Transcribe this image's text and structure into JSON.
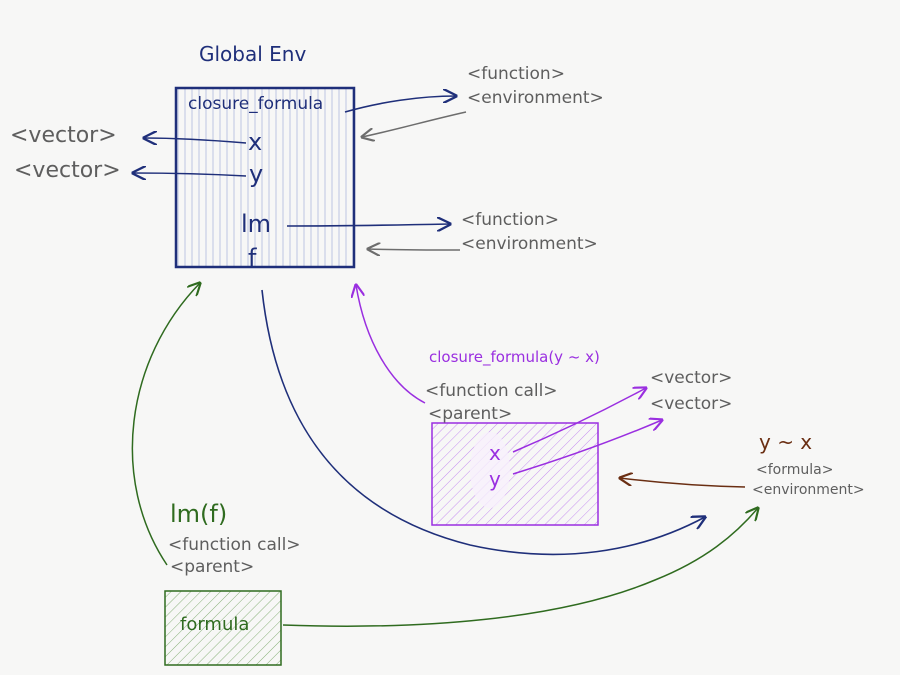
{
  "global_env": {
    "title": "Global Env",
    "vars": [
      "closure_formula",
      "x",
      "y",
      "lm",
      "f"
    ]
  },
  "global_targets": {
    "x_type": "<vector>",
    "y_type": "<vector>",
    "closure_function": "<function>",
    "closure_environment": "<environment>",
    "lm_function": "<function>",
    "lm_environment": "<environment>"
  },
  "closure_call": {
    "title": "closure_formula(y ~ x)",
    "function_call": "<function call>",
    "parent": "<parent>",
    "vars": [
      "x",
      "y"
    ],
    "x_type": "<vector>",
    "y_type": "<vector>"
  },
  "formula_obj": {
    "title": "y ~ x",
    "formula": "<formula>",
    "environment": "<environment>"
  },
  "lm_call": {
    "title": "lm(f)",
    "function_call": "<function call>",
    "parent": "<parent>",
    "var": "formula"
  },
  "colors": {
    "global": "#1f2f7a",
    "closure": "#9a2fe0",
    "lm": "#2f6b1f",
    "formula": "#6a2e12",
    "gray": "#5e5e5e"
  }
}
